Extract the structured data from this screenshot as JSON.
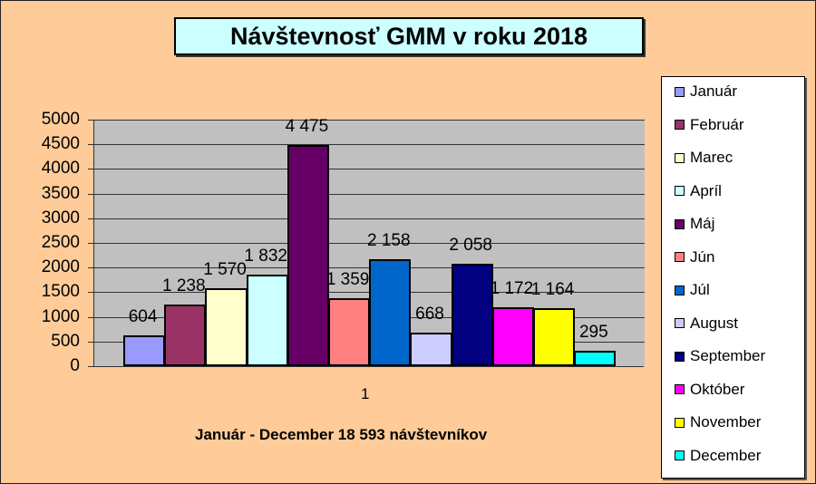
{
  "chart_data": {
    "type": "bar",
    "title": "Návštevnosť GMM v roku 2018",
    "xlabel": "Január - December 18 593 návštevníkov",
    "ylabel": "",
    "categories": [
      "1"
    ],
    "ylim": [
      0,
      5000
    ],
    "yticks": [
      "5000",
      "4500",
      "4000",
      "3500",
      "3000",
      "2500",
      "2000",
      "1500",
      "1000",
      "500",
      "0"
    ],
    "grid": true,
    "legend_position": "right",
    "series": [
      {
        "name": "Január",
        "values": [
          604
        ],
        "label": "604",
        "color": "#9999FF"
      },
      {
        "name": "Február",
        "values": [
          1238
        ],
        "label": "1 238",
        "color": "#993366"
      },
      {
        "name": "Marec",
        "values": [
          1570
        ],
        "label": "1 570",
        "color": "#FFFFCC"
      },
      {
        "name": "Apríl",
        "values": [
          1832
        ],
        "label": "1 832",
        "color": "#CCFFFF"
      },
      {
        "name": "Máj",
        "values": [
          4475
        ],
        "label": "4 475",
        "color": "#660066"
      },
      {
        "name": "Jún",
        "values": [
          1359
        ],
        "label": "1 359",
        "color": "#FF8080"
      },
      {
        "name": "Júl",
        "values": [
          2158
        ],
        "label": "2 158",
        "color": "#0066CC"
      },
      {
        "name": "August",
        "values": [
          668
        ],
        "label": "668",
        "color": "#CCCCFF"
      },
      {
        "name": "September",
        "values": [
          2058
        ],
        "label": "2 058",
        "color": "#000080"
      },
      {
        "name": "Október",
        "values": [
          1172
        ],
        "label": "1 172",
        "color": "#FF00FF"
      },
      {
        "name": "November",
        "values": [
          1164
        ],
        "label": "1 164",
        "color": "#FFFF00"
      },
      {
        "name": "December",
        "values": [
          295
        ],
        "label": "295",
        "color": "#00FFFF"
      }
    ]
  }
}
